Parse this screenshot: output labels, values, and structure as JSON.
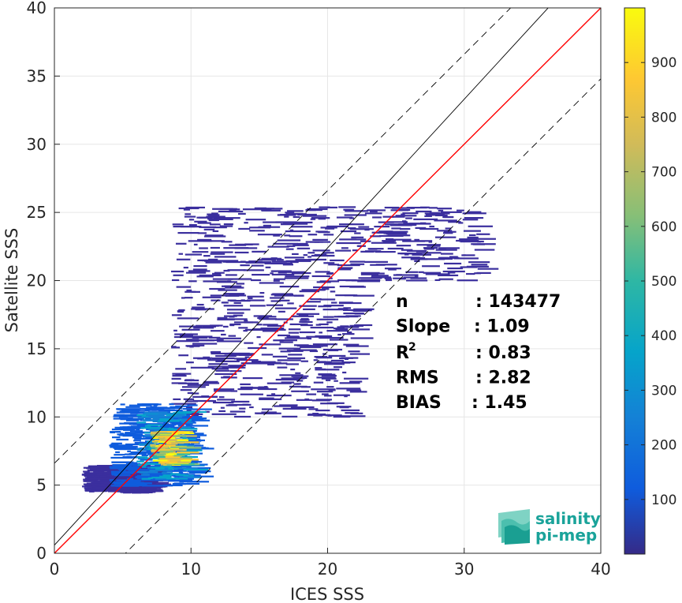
{
  "chart_data": {
    "type": "heatmap",
    "title": "",
    "xlabel": "ICES SSS",
    "ylabel": "Satellite SSS",
    "xlim": [
      0,
      40
    ],
    "ylim": [
      0,
      40
    ],
    "xticks": [
      "0",
      "10",
      "20",
      "30",
      "40"
    ],
    "yticks": [
      "0",
      "5",
      "10",
      "15",
      "20",
      "25",
      "30",
      "35",
      "40"
    ],
    "grid": true,
    "colorbar": {
      "range": [
        0,
        1000
      ],
      "ticks": [
        "100",
        "200",
        "300",
        "400",
        "500",
        "600",
        "700",
        "800",
        "900"
      ],
      "colormap": "parula",
      "colors": [
        "#352a87",
        "#0f5cdd",
        "#1481d6",
        "#06a4ca",
        "#2eb7a4",
        "#87bf77",
        "#d1bb59",
        "#fec832",
        "#f9fb0e"
      ]
    },
    "reference_lines": [
      {
        "name": "one-to-one",
        "color": "#ff0000",
        "style": "solid",
        "slope": 1,
        "intercept": 0
      },
      {
        "name": "regression",
        "color": "#000000",
        "style": "solid",
        "slope": 1.09,
        "intercept": 0.6
      },
      {
        "name": "upper-bound",
        "color": "#000000",
        "style": "dashed",
        "slope": 1,
        "intercept": 6.6
      },
      {
        "name": "lower-bound",
        "color": "#000000",
        "style": "dashed",
        "slope": 1,
        "intercept": -5.2
      }
    ],
    "density_regions": [
      {
        "x": [
          7,
          9
        ],
        "y": [
          6.5,
          9
        ],
        "level": 900
      },
      {
        "x": [
          6,
          9.5
        ],
        "y": [
          5.5,
          10.5
        ],
        "level": 350
      },
      {
        "x": [
          4,
          10
        ],
        "y": [
          5,
          11
        ],
        "level": 120
      },
      {
        "x": [
          2,
          7
        ],
        "y": [
          4.5,
          6.5
        ],
        "level": 80
      },
      {
        "x": [
          8.5,
          31
        ],
        "y": [
          20,
          25.5
        ],
        "level": 60
      },
      {
        "x": [
          8.5,
          22
        ],
        "y": [
          10,
          20
        ],
        "level": 30
      }
    ],
    "stats": [
      {
        "label": "n",
        "value": ": 143477"
      },
      {
        "label": "Slope",
        "value": ": 1.09"
      },
      {
        "label": "R",
        "sup": "2",
        "value": ": 0.83"
      },
      {
        "label": "RMS",
        "value": ": 2.82"
      },
      {
        "label": "BIAS",
        "value": ": 1.45"
      }
    ]
  },
  "logo": {
    "line1": "salinity",
    "line2": "pi-mep",
    "icon": "wave-layers-icon",
    "color": "#1aa39a"
  }
}
